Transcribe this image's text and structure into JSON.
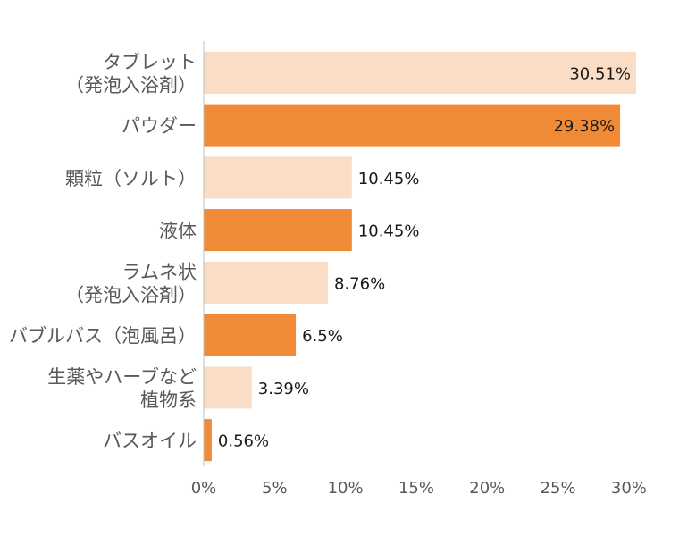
{
  "chart_data": {
    "type": "bar",
    "orientation": "horizontal",
    "categories": [
      [
        "タブレット",
        "（発泡入浴剤）"
      ],
      [
        "パウダー"
      ],
      [
        "顆粒（ソルト）"
      ],
      [
        "液体"
      ],
      [
        "ラムネ状",
        "（発泡入浴剤）"
      ],
      [
        "バブルバス（泡風呂）"
      ],
      [
        "生薬やハーブなど",
        "植物系"
      ],
      [
        "バスオイル"
      ]
    ],
    "values": [
      30.51,
      29.38,
      10.45,
      10.45,
      8.76,
      6.5,
      3.39,
      0.56
    ],
    "data_labels": [
      "30.51%",
      "29.38%",
      "10.45%",
      "10.45%",
      "8.76%",
      "6.5%",
      "3.39%",
      "0.56%"
    ],
    "x_ticks": [
      0,
      5,
      10,
      15,
      20,
      25,
      30
    ],
    "x_tick_labels": [
      "0%",
      "5%",
      "10%",
      "15%",
      "20%",
      "25%",
      "30%"
    ],
    "xlim": [
      0,
      30.51
    ],
    "bar_colors": [
      "#FBDCC4",
      "#F08A36",
      "#FBDCC4",
      "#F08A36",
      "#FBDCC4",
      "#F08A36",
      "#FBDCC4",
      "#F08A36"
    ],
    "title": "",
    "xlabel": "",
    "ylabel": "",
    "grid": false,
    "legend": "none"
  }
}
